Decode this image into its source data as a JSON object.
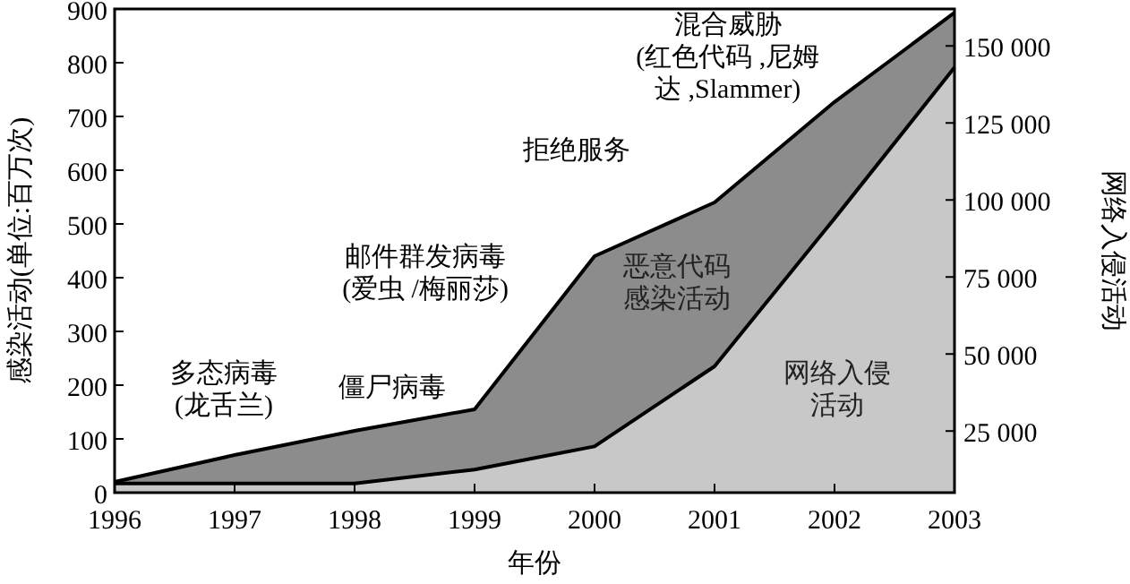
{
  "chart_data": {
    "type": "area",
    "xlabel": "年份",
    "ylabel": "感染活动(单位:百万次)",
    "y2label": "网络入侵活动",
    "x": [
      1996,
      1997,
      1998,
      1999,
      2000,
      2001,
      2002,
      2003
    ],
    "xlim": [
      1996,
      2003
    ],
    "xticks": [
      1996,
      1997,
      1998,
      1999,
      2000,
      2001,
      2002,
      2003
    ],
    "ylim": [
      0,
      900
    ],
    "yticks": [
      0,
      100,
      200,
      300,
      400,
      500,
      600,
      700,
      800,
      900
    ],
    "y2lim": [
      5000,
      162000
    ],
    "y2ticks": [
      {
        "value": 25000,
        "label": "25 000"
      },
      {
        "value": 50000,
        "label": "50 000"
      },
      {
        "value": 75000,
        "label": "75 000"
      },
      {
        "value": 100000,
        "label": "100 000"
      },
      {
        "value": 125000,
        "label": "125 000"
      },
      {
        "value": 150000,
        "label": "150 000"
      }
    ],
    "series": [
      {
        "name": "恶意代码感染活动",
        "color": "#8c8c8c",
        "values": [
          20,
          70,
          115,
          155,
          440,
          540,
          727,
          893
        ]
      },
      {
        "name": "网络入侵活动",
        "color": "#c8c8c8",
        "axis": "y2",
        "values": [
          8000,
          8000,
          8000,
          12500,
          20000,
          46000,
          94000,
          143000
        ]
      }
    ],
    "annotations": [
      "多态病毒\n(龙舌兰)",
      "僵尸病毒",
      "邮件群发病毒\n(爱虫 /梅丽莎)",
      "拒绝服务",
      "混合威胁\n(红色代码 ,尼姆达 ,Slammer)"
    ],
    "grid": false
  }
}
